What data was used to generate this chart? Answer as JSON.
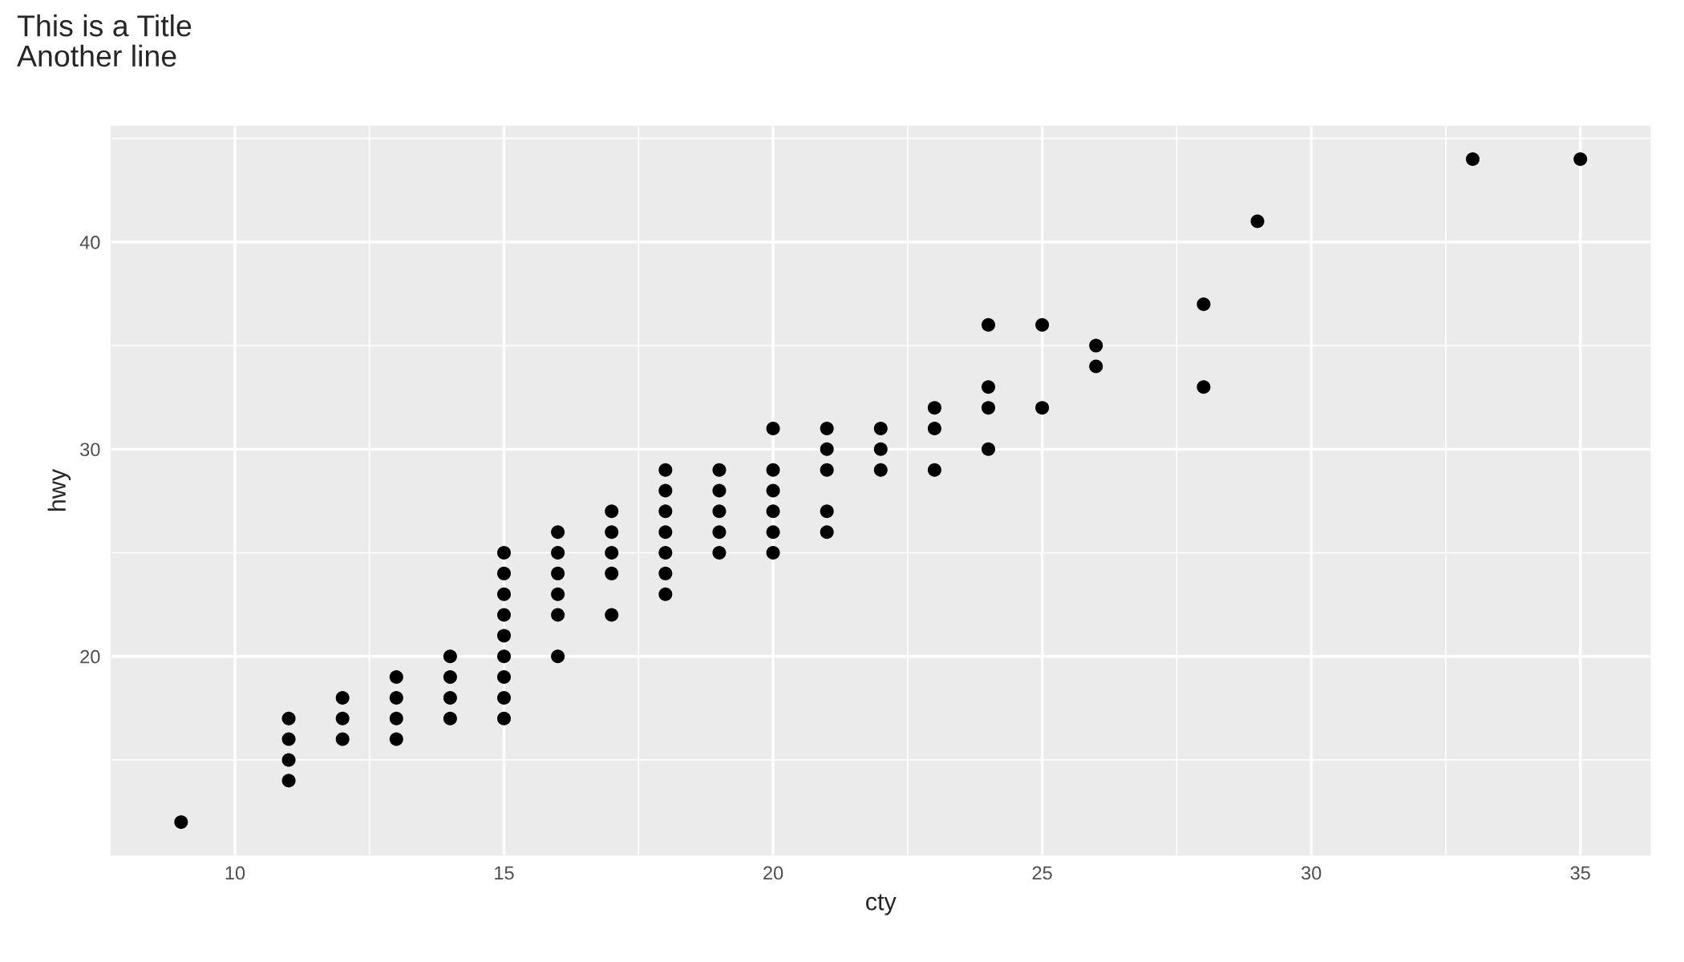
{
  "chart_data": {
    "type": "scatter",
    "title": "This is a Title\nAnother line",
    "xlabel": "cty",
    "ylabel": "hwy",
    "x": [
      9,
      11,
      11,
      11,
      11,
      12,
      12,
      12,
      13,
      13,
      13,
      13,
      14,
      14,
      14,
      14,
      15,
      15,
      15,
      15,
      15,
      15,
      15,
      15,
      15,
      16,
      16,
      16,
      16,
      16,
      16,
      17,
      17,
      17,
      17,
      17,
      18,
      18,
      18,
      18,
      18,
      18,
      18,
      19,
      19,
      19,
      19,
      19,
      20,
      20,
      20,
      20,
      20,
      20,
      21,
      21,
      21,
      21,
      21,
      22,
      22,
      22,
      23,
      23,
      23,
      24,
      24,
      24,
      24,
      25,
      25,
      26,
      26,
      28,
      28,
      29,
      33,
      35
    ],
    "values": [
      12,
      14,
      15,
      16,
      17,
      16,
      17,
      18,
      16,
      17,
      18,
      19,
      17,
      18,
      19,
      20,
      17,
      18,
      19,
      20,
      21,
      22,
      23,
      24,
      25,
      20,
      22,
      23,
      24,
      25,
      26,
      22,
      24,
      25,
      26,
      27,
      23,
      24,
      25,
      26,
      27,
      28,
      29,
      25,
      26,
      27,
      28,
      29,
      25,
      26,
      27,
      28,
      29,
      31,
      26,
      27,
      29,
      30,
      31,
      29,
      30,
      31,
      29,
      31,
      32,
      30,
      32,
      33,
      36,
      32,
      36,
      34,
      35,
      33,
      37,
      41,
      44,
      44
    ],
    "color": "#000000",
    "marker": "circle",
    "xlim": [
      7.7,
      36.3
    ],
    "ylim": [
      10.4,
      45.6
    ],
    "xticks": [
      10,
      15,
      20,
      25,
      30,
      35
    ],
    "yticks": [
      20,
      30,
      40
    ],
    "grid": true
  }
}
